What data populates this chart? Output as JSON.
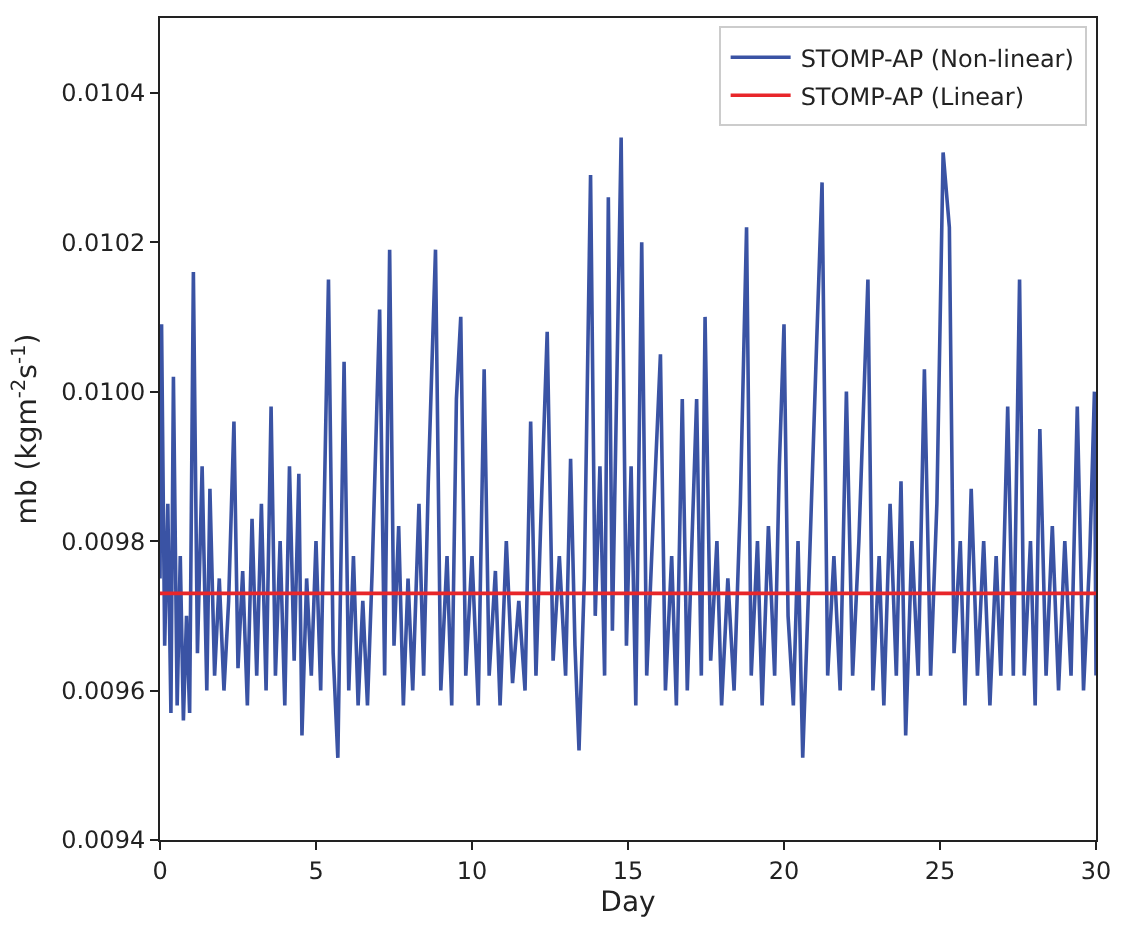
{
  "chart_data": {
    "type": "line",
    "xlabel": "Day",
    "ylabel": "mb (kgm$^{-2}$s$^{-1}$)",
    "xlim": [
      0,
      30
    ],
    "xticks": [
      0,
      5,
      10,
      15,
      20,
      25,
      30
    ],
    "ylim": [
      0.0094,
      0.0105
    ],
    "yticks": [
      0.0094,
      0.0096,
      0.0098,
      {
        "value": 0.01,
        "label": "0.0100"
      },
      0.0102,
      0.0104
    ],
    "legend": "top right",
    "marker": "none",
    "line_style": "solid",
    "series": [
      {
        "name": "STOMP-AP (Non-linear)",
        "color": "#3a53a4",
        "x": [
          0.0,
          0.05,
          0.15,
          0.25,
          0.35,
          0.43,
          0.55,
          0.65,
          0.75,
          0.85,
          0.95,
          1.07,
          1.2,
          1.35,
          1.5,
          1.6,
          1.75,
          1.9,
          2.05,
          2.2,
          2.37,
          2.5,
          2.65,
          2.8,
          2.95,
          3.1,
          3.25,
          3.4,
          3.56,
          3.7,
          3.85,
          4.0,
          4.15,
          4.3,
          4.45,
          4.55,
          4.7,
          4.85,
          5.0,
          5.15,
          5.4,
          5.55,
          5.7,
          5.9,
          6.05,
          6.2,
          6.35,
          6.5,
          6.65,
          6.8,
          7.04,
          7.2,
          7.36,
          7.5,
          7.65,
          7.8,
          7.95,
          8.1,
          8.3,
          8.45,
          8.6,
          8.83,
          9.0,
          9.2,
          9.35,
          9.5,
          9.64,
          9.8,
          10.0,
          10.2,
          10.39,
          10.55,
          10.75,
          10.9,
          11.1,
          11.3,
          11.5,
          11.7,
          11.88,
          12.05,
          12.2,
          12.41,
          12.6,
          12.8,
          13.0,
          13.16,
          13.3,
          13.43,
          13.6,
          13.8,
          13.95,
          14.1,
          14.25,
          14.37,
          14.5,
          14.78,
          14.95,
          15.1,
          15.25,
          15.44,
          15.6,
          15.8,
          16.04,
          16.2,
          16.4,
          16.55,
          16.74,
          16.9,
          17.05,
          17.2,
          17.35,
          17.47,
          17.65,
          17.85,
          18.0,
          18.2,
          18.4,
          18.6,
          18.8,
          18.95,
          19.15,
          19.3,
          19.5,
          19.7,
          19.85,
          20.0,
          20.13,
          20.3,
          20.45,
          20.6,
          20.8,
          21.05,
          21.22,
          21.4,
          21.6,
          21.8,
          22.0,
          22.2,
          22.4,
          22.69,
          22.85,
          23.05,
          23.2,
          23.4,
          23.6,
          23.75,
          23.9,
          24.1,
          24.3,
          24.5,
          24.7,
          24.9,
          25.1,
          25.3,
          25.45,
          25.65,
          25.8,
          26.0,
          26.2,
          26.4,
          26.6,
          26.8,
          26.95,
          27.17,
          27.35,
          27.55,
          27.7,
          27.9,
          28.05,
          28.2,
          28.4,
          28.6,
          28.8,
          29.0,
          29.2,
          29.4,
          29.6,
          29.8,
          29.95,
          30.0
        ],
        "values": [
          0.00975,
          0.01009,
          0.00966,
          0.00985,
          0.00957,
          0.01002,
          0.00958,
          0.00978,
          0.00956,
          0.0097,
          0.00957,
          0.01016,
          0.00965,
          0.0099,
          0.0096,
          0.00987,
          0.00962,
          0.00975,
          0.0096,
          0.00972,
          0.00996,
          0.00963,
          0.00976,
          0.00958,
          0.00983,
          0.00962,
          0.00985,
          0.0096,
          0.00998,
          0.00962,
          0.0098,
          0.00958,
          0.0099,
          0.00964,
          0.00989,
          0.00954,
          0.00975,
          0.00962,
          0.0098,
          0.0096,
          0.01015,
          0.00965,
          0.00951,
          0.01004,
          0.0096,
          0.00978,
          0.00958,
          0.00972,
          0.00958,
          0.00976,
          0.01011,
          0.00962,
          0.01019,
          0.00966,
          0.00982,
          0.00958,
          0.00975,
          0.0096,
          0.00985,
          0.00962,
          0.00988,
          0.01019,
          0.0096,
          0.00978,
          0.00958,
          0.00999,
          0.0101,
          0.00962,
          0.00978,
          0.00958,
          0.01003,
          0.00962,
          0.00976,
          0.00958,
          0.0098,
          0.00961,
          0.00972,
          0.0096,
          0.00996,
          0.00962,
          0.00982,
          0.01008,
          0.00964,
          0.00978,
          0.00962,
          0.00991,
          0.00966,
          0.00952,
          0.00975,
          0.01029,
          0.0097,
          0.0099,
          0.00962,
          0.01026,
          0.00968,
          0.01034,
          0.00966,
          0.0099,
          0.00958,
          0.0102,
          0.00962,
          0.00982,
          0.01005,
          0.0096,
          0.00978,
          0.00958,
          0.00999,
          0.0096,
          0.0098,
          0.00999,
          0.00962,
          0.0101,
          0.00964,
          0.0098,
          0.00958,
          0.00975,
          0.0096,
          0.00985,
          0.01022,
          0.00962,
          0.0098,
          0.00958,
          0.00982,
          0.00962,
          0.0099,
          0.01009,
          0.0097,
          0.00958,
          0.0098,
          0.00951,
          0.00975,
          0.01007,
          0.01028,
          0.00962,
          0.00978,
          0.0096,
          0.01,
          0.00962,
          0.0098,
          0.01015,
          0.0096,
          0.00978,
          0.00958,
          0.00985,
          0.00962,
          0.00988,
          0.00954,
          0.0098,
          0.00962,
          0.01003,
          0.00962,
          0.00985,
          0.01032,
          0.01022,
          0.00965,
          0.0098,
          0.00958,
          0.00987,
          0.00962,
          0.0098,
          0.00958,
          0.00978,
          0.00962,
          0.00998,
          0.00962,
          0.01015,
          0.00962,
          0.0098,
          0.00958,
          0.00995,
          0.00962,
          0.00982,
          0.0096,
          0.0098,
          0.00962,
          0.00998,
          0.0096,
          0.00978,
          0.01,
          0.00962
        ]
      },
      {
        "name": "STOMP-AP (Linear)",
        "color": "#e8262a",
        "x": [
          0,
          30
        ],
        "values": [
          0.00973,
          0.00973
        ]
      }
    ]
  }
}
